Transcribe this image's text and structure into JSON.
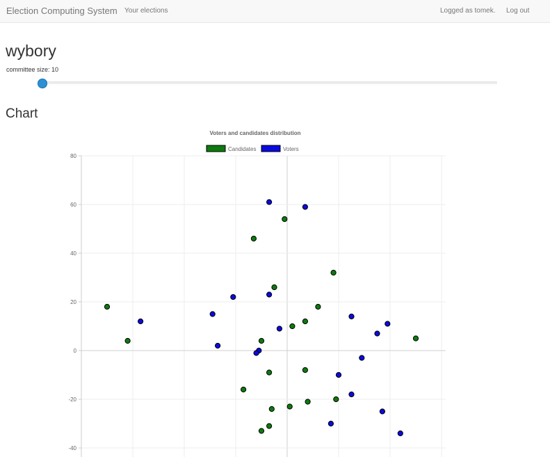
{
  "navbar": {
    "brand": "Election Computing System",
    "your_elections": "Your elections",
    "logged_as": "Logged as tomek.",
    "logout": "Log out"
  },
  "election": {
    "name": "wybory",
    "committee_label": "committee size: 10",
    "committee_size": 10
  },
  "chart_section": {
    "title": "Chart"
  },
  "colors": {
    "candidates": "#0d7a0d",
    "voters": "#0a0ae0"
  },
  "chart_data": {
    "type": "scatter",
    "title": "Voters and candidates distribution",
    "legend_position": "top-center",
    "grid": true,
    "xlim": [
      -40,
      30
    ],
    "ylim": [
      -44,
      80
    ],
    "yticks": [
      80,
      60,
      40,
      20,
      0,
      -20,
      -40
    ],
    "series": [
      {
        "name": "Candidates",
        "points": [
          [
            -35,
            18
          ],
          [
            -31,
            4
          ],
          [
            -6.5,
            46
          ],
          [
            -0.5,
            54
          ],
          [
            -2.5,
            26
          ],
          [
            9,
            32
          ],
          [
            6,
            18
          ],
          [
            3.5,
            12
          ],
          [
            1,
            10
          ],
          [
            -5,
            4
          ],
          [
            25,
            5
          ],
          [
            -3.5,
            -9
          ],
          [
            3.5,
            -8
          ],
          [
            -8.5,
            -16
          ],
          [
            9.5,
            -20
          ],
          [
            4,
            -21
          ],
          [
            0.5,
            -23
          ],
          [
            -3,
            -24
          ],
          [
            -3.5,
            -31
          ],
          [
            -5,
            -33
          ]
        ]
      },
      {
        "name": "Voters",
        "points": [
          [
            -3.5,
            61
          ],
          [
            3.5,
            59
          ],
          [
            -10.5,
            22
          ],
          [
            -3.5,
            23
          ],
          [
            -14.5,
            15
          ],
          [
            -28.5,
            12
          ],
          [
            -13.5,
            2
          ],
          [
            -1.5,
            9
          ],
          [
            -5.5,
            0
          ],
          [
            -6,
            -1
          ],
          [
            12.5,
            14
          ],
          [
            19.5,
            11
          ],
          [
            17.5,
            7
          ],
          [
            14.5,
            -3
          ],
          [
            10,
            -10
          ],
          [
            12.5,
            -18
          ],
          [
            18.5,
            -25
          ],
          [
            8.5,
            -30
          ],
          [
            22,
            -34
          ]
        ]
      }
    ]
  }
}
